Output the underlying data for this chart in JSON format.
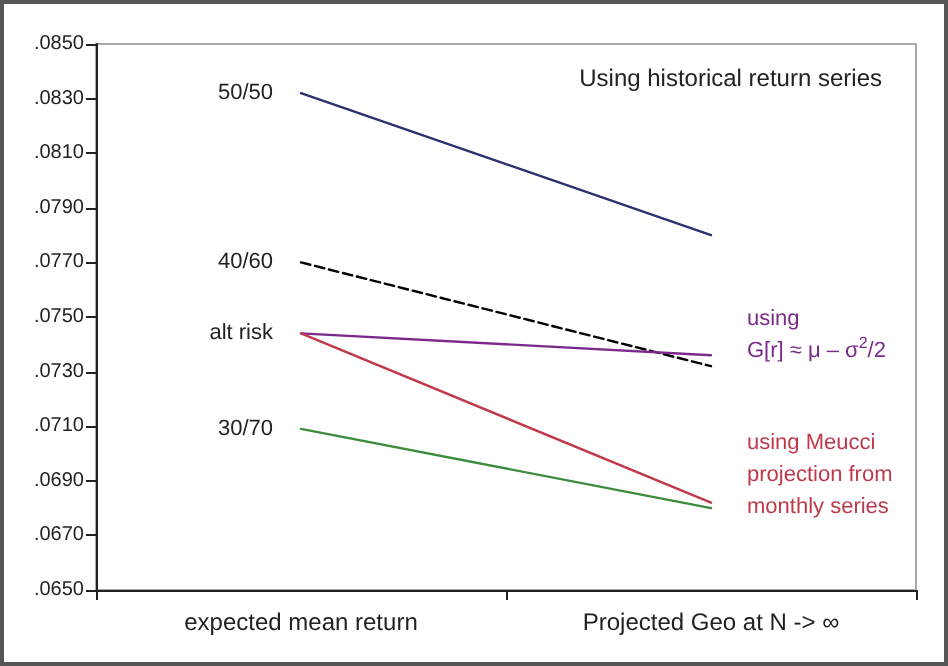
{
  "chart_data": {
    "type": "line",
    "title": "Using historical return series",
    "categories": [
      "expected mean return",
      "Projected Geo at N -> ∞"
    ],
    "series": [
      {
        "name": "50/50",
        "color": "#2e3170",
        "values": [
          0.0832,
          0.078
        ]
      },
      {
        "name": "40/60",
        "color": "#000000",
        "line_style": "dashed",
        "values": [
          0.077,
          0.0732
        ]
      },
      {
        "name": "alt risk",
        "color": "#7b2a8a",
        "values": [
          0.0744,
          0.0736
        ]
      },
      {
        "color": "#c0394b",
        "values": [
          0.0744,
          0.0682
        ]
      },
      {
        "name": "30/70",
        "color": "#3c8c3c",
        "values": [
          0.0709,
          0.068
        ]
      }
    ],
    "annotations": [
      {
        "text": "using\nG[r] ≈ μ – σ$^{2}$/2",
        "x": "Projected Geo at N -> ∞",
        "y": 0.0736
      },
      {
        "text": "using Meucci\nprojection from\nmonthly series",
        "x": "Projected Geo at N -> ∞",
        "y": 0.0682
      }
    ],
    "ylim": [
      0.065,
      0.085
    ],
    "yticks": [
      {
        "value": 0.065,
        "label": ".0650"
      },
      {
        "value": 0.067,
        "label": ".0670"
      },
      {
        "value": 0.069,
        "label": ".0690"
      },
      {
        "value": 0.071,
        "label": ".0710"
      },
      {
        "value": 0.073,
        "label": ".0730"
      },
      {
        "value": 0.075,
        "label": ".0750"
      },
      {
        "value": 0.077,
        "label": ".0770"
      },
      {
        "value": 0.079,
        "label": ".0790"
      },
      {
        "value": 0.081,
        "label": ".0810"
      },
      {
        "value": 0.083,
        "label": ".0830"
      },
      {
        "value": 0.085,
        "label": ".0850"
      }
    ],
    "grid": false,
    "legend": false,
    "marker": "none",
    "line_style": "solid"
  }
}
